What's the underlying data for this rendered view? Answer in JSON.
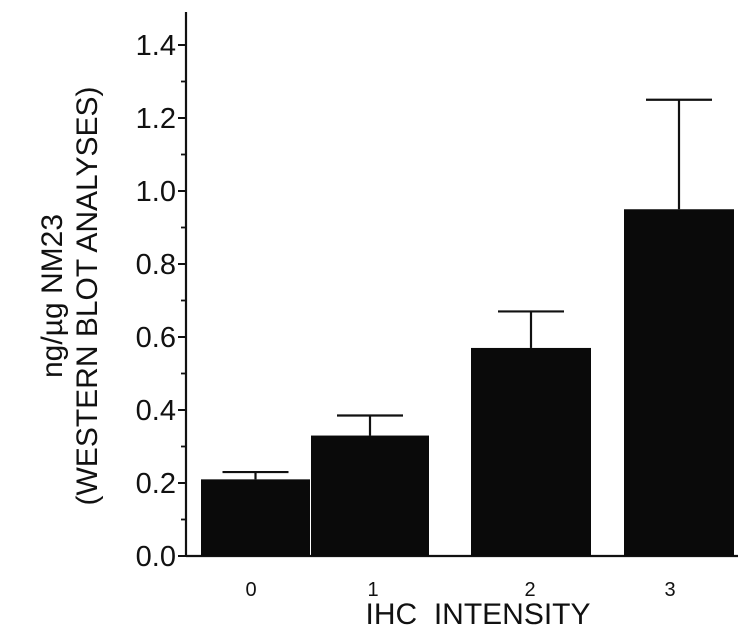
{
  "chart_data": {
    "type": "bar",
    "categories": [
      "0",
      "1",
      "2",
      "3"
    ],
    "values": [
      0.21,
      0.33,
      0.57,
      0.95
    ],
    "errors": [
      0.02,
      0.055,
      0.1,
      0.3
    ],
    "ylim": [
      0,
      1.5
    ],
    "yticks": [
      "0.0",
      "0.2",
      "0.4",
      "0.6",
      "0.8",
      "1.0",
      "1.2",
      "1.4"
    ],
    "xlabel": "IHC  INTENSITY",
    "ylabel_line1": "ng/µg NM23",
    "ylabel_line2": "(WESTERN  BLOT  ANALYSES)",
    "bar_color": "#0a0a0a",
    "grid": false,
    "legend": "none"
  }
}
